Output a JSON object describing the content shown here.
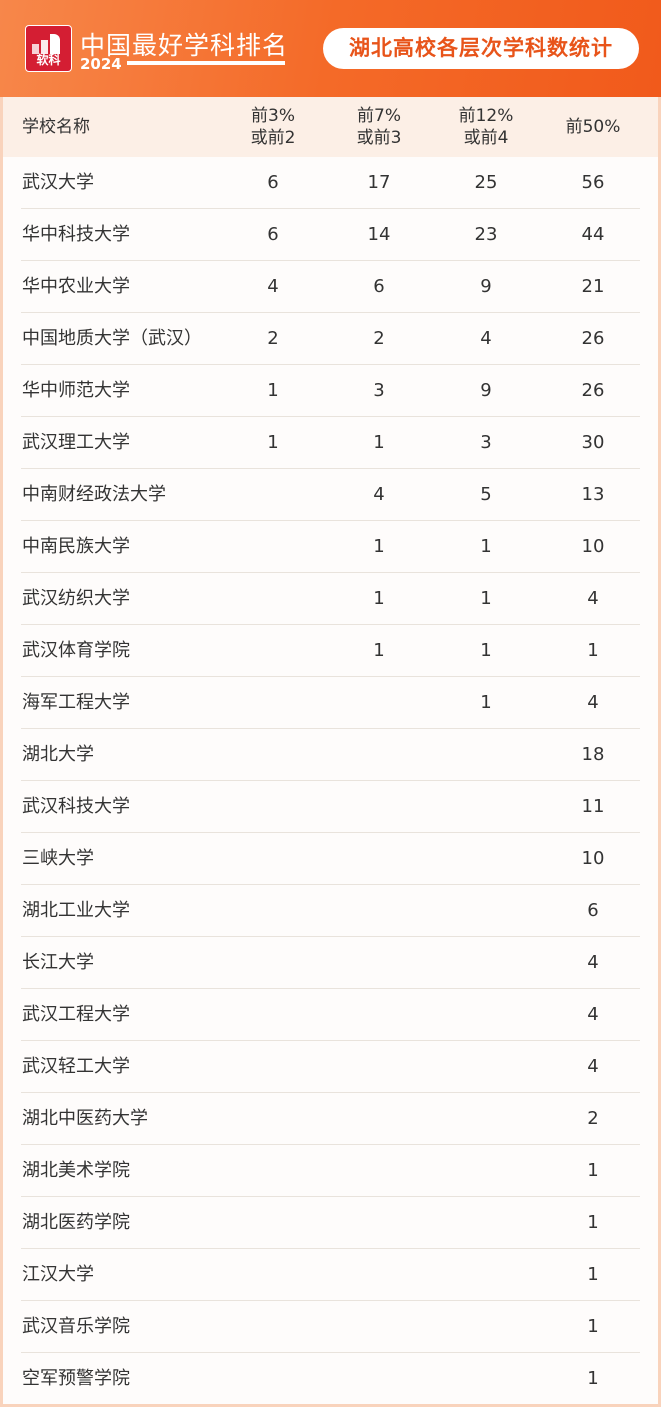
{
  "header": {
    "logo_text": "软科",
    "brand": "中国最好学科排名",
    "year": "2024",
    "title": "湖北高校各层次学科数统计",
    "accent_color": "#f46a28"
  },
  "table": {
    "columns": [
      "学校名称",
      "前3%\n或前2",
      "前7%\n或前3",
      "前12%\n或前4",
      "前50%"
    ],
    "rows": [
      [
        "武汉大学",
        "6",
        "17",
        "25",
        "56"
      ],
      [
        "华中科技大学",
        "6",
        "14",
        "23",
        "44"
      ],
      [
        "华中农业大学",
        "4",
        "6",
        "9",
        "21"
      ],
      [
        "中国地质大学（武汉）",
        "2",
        "2",
        "4",
        "26"
      ],
      [
        "华中师范大学",
        "1",
        "3",
        "9",
        "26"
      ],
      [
        "武汉理工大学",
        "1",
        "1",
        "3",
        "30"
      ],
      [
        "中南财经政法大学",
        "",
        "4",
        "5",
        "13"
      ],
      [
        "中南民族大学",
        "",
        "1",
        "1",
        "10"
      ],
      [
        "武汉纺织大学",
        "",
        "1",
        "1",
        "4"
      ],
      [
        "武汉体育学院",
        "",
        "1",
        "1",
        "1"
      ],
      [
        "海军工程大学",
        "",
        "",
        "1",
        "4"
      ],
      [
        "湖北大学",
        "",
        "",
        "",
        "18"
      ],
      [
        "武汉科技大学",
        "",
        "",
        "",
        "11"
      ],
      [
        "三峡大学",
        "",
        "",
        "",
        "10"
      ],
      [
        "湖北工业大学",
        "",
        "",
        "",
        "6"
      ],
      [
        "长江大学",
        "",
        "",
        "",
        "4"
      ],
      [
        "武汉工程大学",
        "",
        "",
        "",
        "4"
      ],
      [
        "武汉轻工大学",
        "",
        "",
        "",
        "4"
      ],
      [
        "湖北中医药大学",
        "",
        "",
        "",
        "2"
      ],
      [
        "湖北美术学院",
        "",
        "",
        "",
        "1"
      ],
      [
        "湖北医药学院",
        "",
        "",
        "",
        "1"
      ],
      [
        "江汉大学",
        "",
        "",
        "",
        "1"
      ],
      [
        "武汉音乐学院",
        "",
        "",
        "",
        "1"
      ],
      [
        "空军预警学院",
        "",
        "",
        "",
        "1"
      ]
    ]
  }
}
